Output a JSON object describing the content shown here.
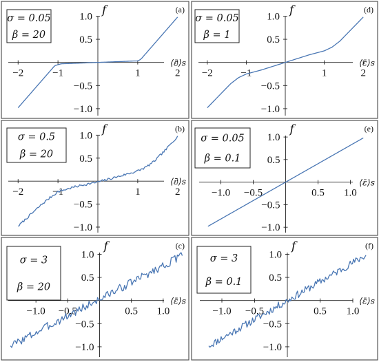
{
  "figure": {
    "background": "#ffffff",
    "line_color": "#4a77b4",
    "frame_color": "#555555"
  },
  "chart_data": [
    {
      "panel": "(a)",
      "type": "line",
      "ylabel": "f",
      "xlabel": "⟨ε̄⟩s",
      "params": [
        "σ = 0.05",
        "β = 20"
      ],
      "xlim": [
        -2.35,
        2.35
      ],
      "ylim": [
        -1.15,
        1.2
      ],
      "xticks": [
        -2,
        -1,
        1,
        2
      ],
      "xtick_labels": [
        "−2",
        "−1",
        "1",
        "2"
      ],
      "yticks": [
        1.0,
        0.5,
        -0.5,
        -1.0
      ],
      "ytick_labels": [
        "1.0",
        "0.5",
        "−0.5",
        "−1.0"
      ],
      "series": [
        {
          "model": "smooth",
          "x": [
            -2,
            -1.08,
            -0.92,
            -0.6,
            -0.3,
            0,
            0.3,
            0.6,
            0.9,
            1.0,
            1.08,
            2
          ],
          "y": [
            -0.98,
            -0.07,
            -0.03,
            -0.02,
            -0.01,
            0.0,
            0.01,
            0.02,
            0.03,
            0.03,
            0.07,
            0.98
          ]
        }
      ]
    },
    {
      "panel": "(d)",
      "type": "line",
      "ylabel": "f",
      "xlabel": "⟨ε̄⟩s",
      "params": [
        "σ = 0.05",
        "β = 1"
      ],
      "xlim": [
        -2.35,
        2.35
      ],
      "ylim": [
        -1.15,
        1.2
      ],
      "xticks": [
        -2,
        -1,
        1,
        2
      ],
      "xtick_labels": [
        "−2",
        "−1",
        "1",
        "2"
      ],
      "yticks": [
        1.0,
        0.5,
        -0.5,
        -1.0
      ],
      "ytick_labels": [
        "1.0",
        "0.5",
        "−0.5",
        "−1.0"
      ],
      "series": [
        {
          "model": "smooth",
          "x": [
            -2,
            -1.7,
            -1.4,
            -1.2,
            -1.0,
            -0.6,
            -0.3,
            0,
            0.3,
            0.6,
            1.0,
            1.2,
            1.4,
            1.7,
            2
          ],
          "y": [
            -0.98,
            -0.72,
            -0.46,
            -0.33,
            -0.25,
            -0.16,
            -0.08,
            0.0,
            0.08,
            0.16,
            0.25,
            0.33,
            0.46,
            0.72,
            0.98
          ]
        }
      ]
    },
    {
      "panel": "(b)",
      "type": "line",
      "ylabel": "f",
      "xlabel": "⟨ε̄⟩s",
      "params": [
        "σ = 0.5",
        "β = 20"
      ],
      "xlim": [
        -2.35,
        2.35
      ],
      "ylim": [
        -1.15,
        1.2
      ],
      "xticks": [
        -2,
        -1,
        1,
        2
      ],
      "xtick_labels": [
        "−2",
        "−1",
        "1",
        "2"
      ],
      "yticks": [
        1.0,
        0.5,
        -0.5,
        -1.0
      ],
      "ytick_labels": [
        "1.0",
        "0.5",
        "−0.5",
        "−1.0"
      ],
      "series": [
        {
          "model": "noisy",
          "noise": 0.025,
          "seed": 7,
          "x": [
            -2,
            -1.7,
            -1.4,
            -1.2,
            -1.0,
            -0.6,
            -0.3,
            0,
            0.3,
            0.6,
            1.0,
            1.2,
            1.4,
            1.7,
            2
          ],
          "y": [
            -0.98,
            -0.74,
            -0.5,
            -0.36,
            -0.23,
            -0.13,
            -0.07,
            -0.02,
            0.05,
            0.12,
            0.22,
            0.3,
            0.42,
            0.68,
            0.98
          ]
        }
      ]
    },
    {
      "panel": "(e)",
      "type": "line",
      "ylabel": "f",
      "xlabel": "⟨ε̄⟩s",
      "params": [
        "σ = 0.05",
        "β = 0.1"
      ],
      "xlim": [
        -1.4,
        1.4
      ],
      "ylim": [
        -1.15,
        1.2
      ],
      "xticks": [
        -1.0,
        -0.5,
        0.5,
        1.0
      ],
      "xtick_labels": [
        "−1.0",
        "−0.5",
        "0.5",
        "1.0"
      ],
      "yticks": [
        1.0,
        0.5,
        -0.5,
        -1.0
      ],
      "ytick_labels": [
        "1.0",
        "0.5",
        "−0.5",
        "−1.0"
      ],
      "series": [
        {
          "model": "smooth",
          "x": [
            -1.2,
            1.2
          ],
          "y": [
            -0.98,
            0.98
          ]
        }
      ]
    },
    {
      "panel": "(c)",
      "type": "line",
      "ylabel": "f",
      "xlabel": "⟨ε̄⟩s",
      "params": [
        "σ = 3",
        "β = 20"
      ],
      "xlim": [
        -1.5,
        1.5
      ],
      "ylim": [
        -1.15,
        1.2
      ],
      "xticks": [
        -1.0,
        -0.5,
        0.5,
        1.0
      ],
      "xtick_labels": [
        "−1.0",
        "−0.5",
        "0.5",
        "1.0"
      ],
      "yticks": [
        1.0,
        0.5,
        -0.5,
        -1.0
      ],
      "ytick_labels": [
        "1.0",
        "0.5",
        "−0.5",
        "−1.0"
      ],
      "series": [
        {
          "model": "noisy",
          "noise": 0.09,
          "seed": 3,
          "x": [
            -1.4,
            1.3
          ],
          "y": [
            -0.98,
            0.97
          ]
        }
      ]
    },
    {
      "panel": "(f)",
      "type": "line",
      "ylabel": "f",
      "xlabel": "⟨ε̄⟩s",
      "params": [
        "σ = 3",
        "β = 0.1"
      ],
      "xlim": [
        -1.4,
        1.4
      ],
      "ylim": [
        -1.15,
        1.2
      ],
      "xticks": [
        -1.0,
        -0.5,
        0.5,
        1.0
      ],
      "xtick_labels": [
        "−1.0",
        "−0.5",
        "0.5",
        "1.0"
      ],
      "yticks": [
        1.0,
        0.5,
        -0.5,
        -1.0
      ],
      "ytick_labels": [
        "1.0",
        "0.5",
        "−0.5",
        "−1.0"
      ],
      "series": [
        {
          "model": "noisy",
          "noise": 0.08,
          "seed": 11,
          "x": [
            -1.2,
            1.2
          ],
          "y": [
            -0.98,
            0.98
          ]
        }
      ]
    }
  ]
}
